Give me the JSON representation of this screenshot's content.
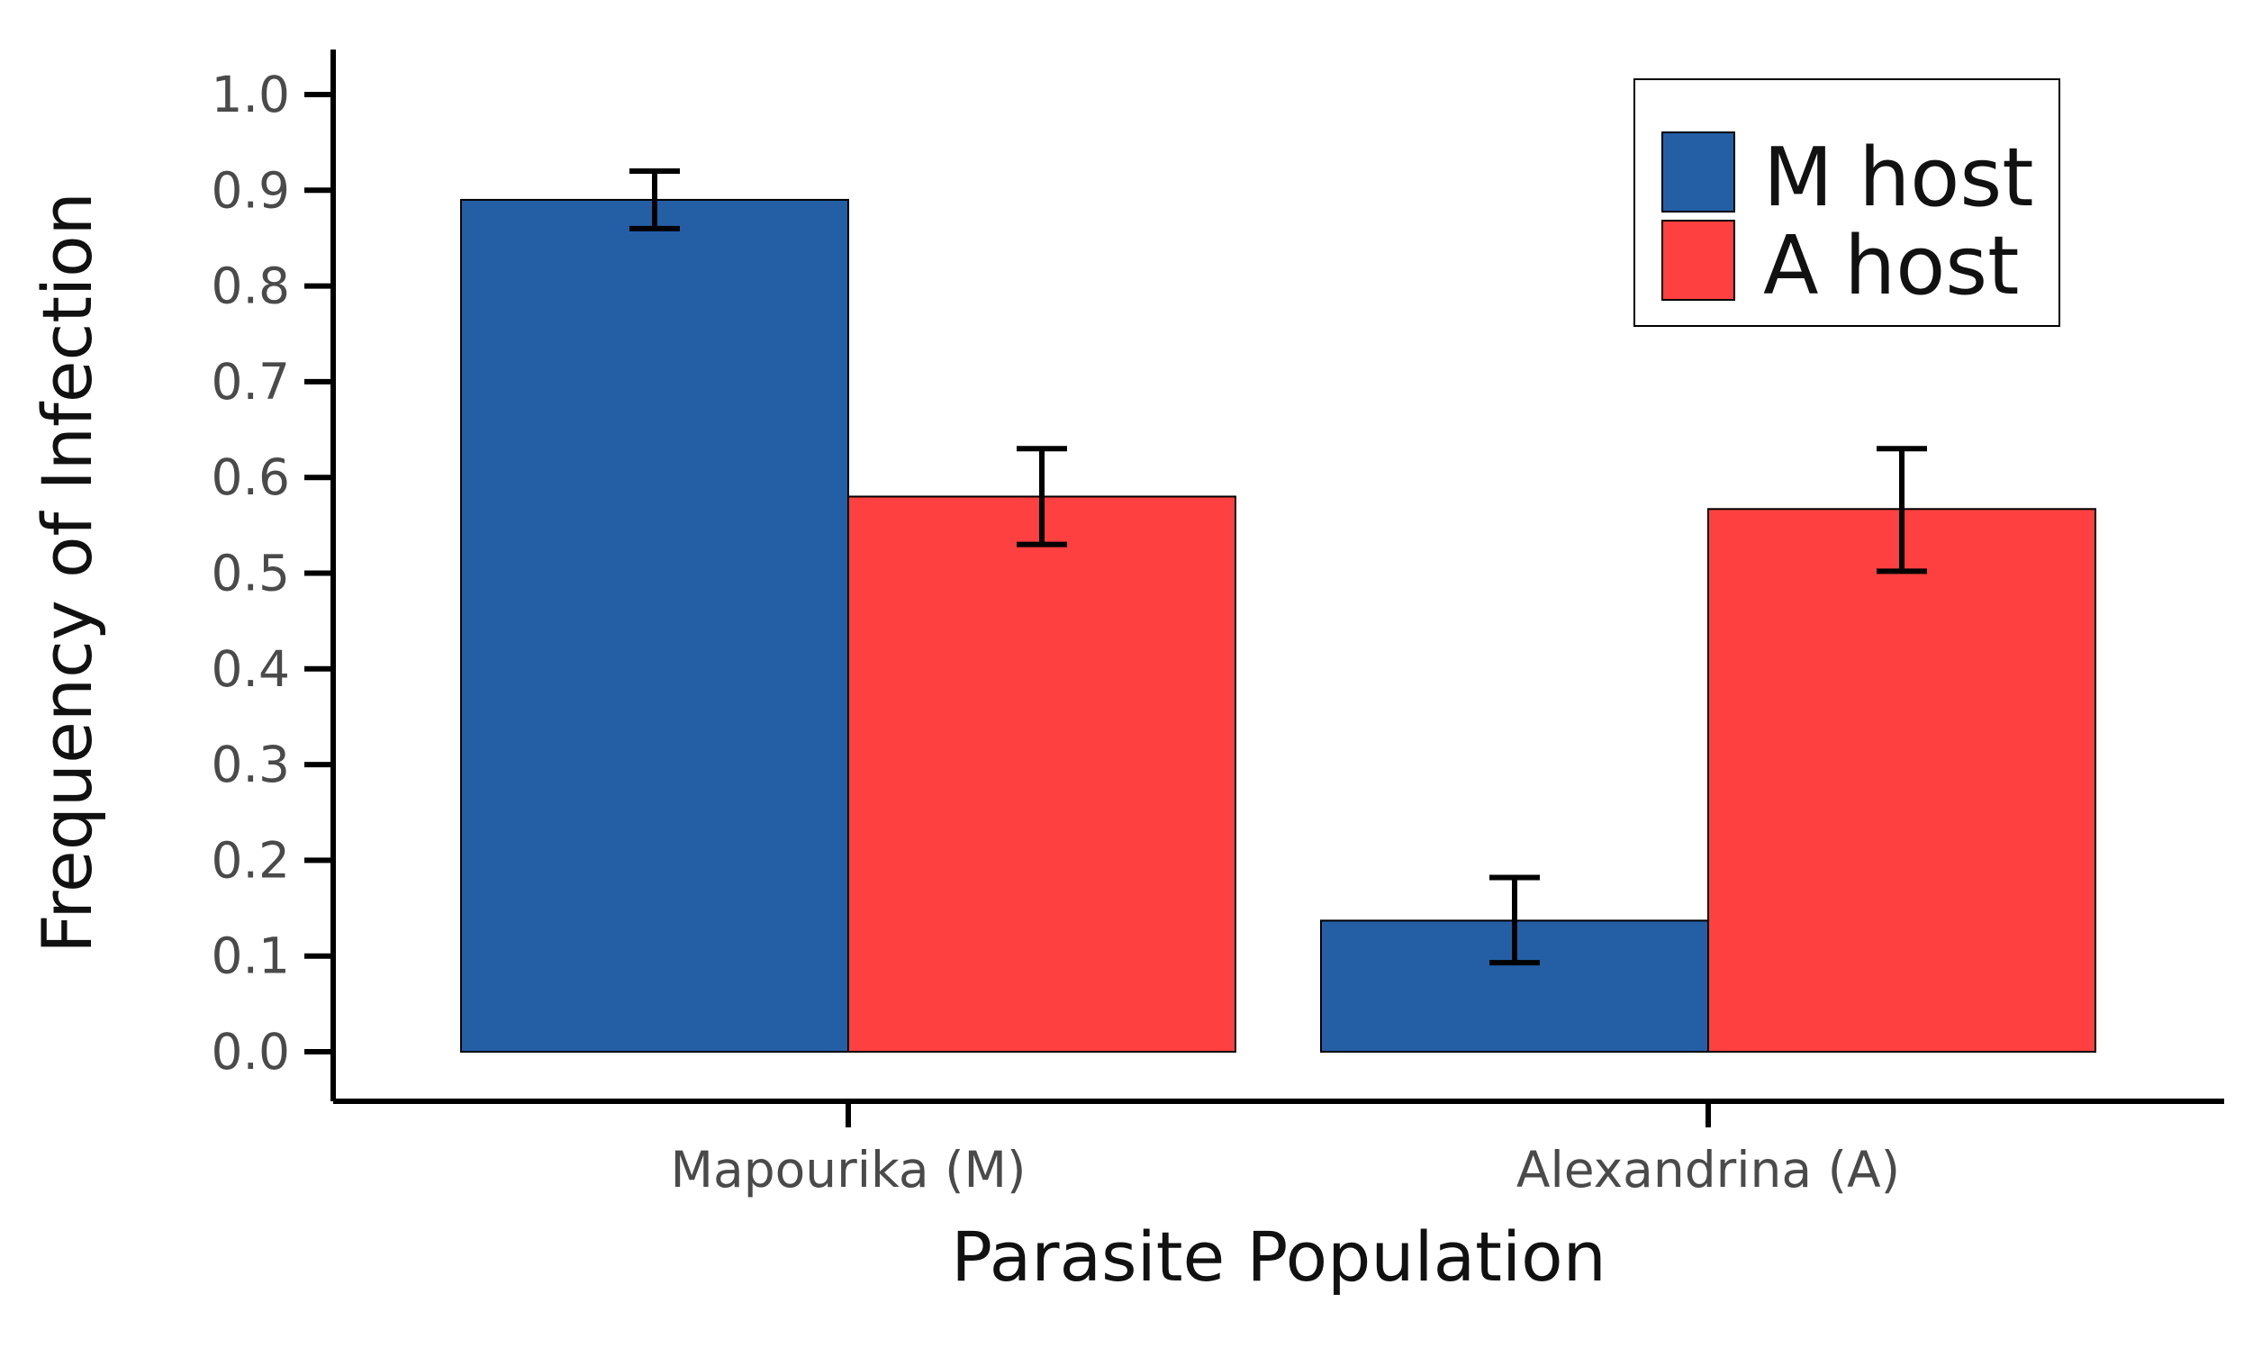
{
  "chart_data": {
    "type": "bar",
    "title": "",
    "xlabel": "Parasite Population",
    "ylabel": "Frequency of Infection",
    "categories": [
      "Mapourika (M)",
      "Alexandrina (A)"
    ],
    "series": [
      {
        "name": "M host",
        "color": "#245fa6",
        "values": [
          0.89,
          0.137
        ],
        "err_low": [
          0.86,
          0.093
        ],
        "err_high": [
          0.92,
          0.182
        ]
      },
      {
        "name": "A host",
        "color": "#ff4040",
        "values": [
          0.58,
          0.567
        ],
        "err_low": [
          0.53,
          0.502
        ],
        "err_high": [
          0.63,
          0.63
        ]
      }
    ],
    "ylim": [
      0,
      1.0
    ],
    "yticks": [
      "0.0",
      "0.1",
      "0.2",
      "0.3",
      "0.4",
      "0.5",
      "0.6",
      "0.7",
      "0.8",
      "0.9",
      "1.0"
    ],
    "legend_position": "top-right",
    "grid": false
  }
}
